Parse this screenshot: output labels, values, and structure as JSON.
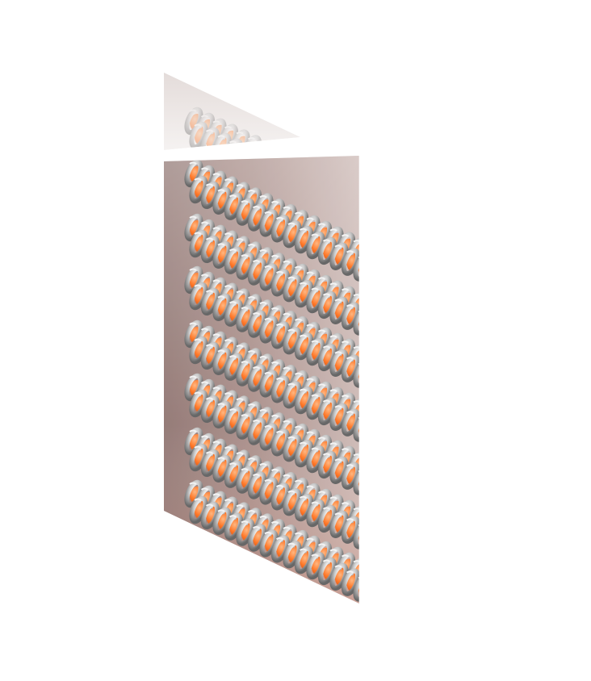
{
  "scene": {
    "subject": "helical-coil-array-prism",
    "colors": {
      "background": "#ffffff",
      "panel_dark": "#9a7f7a",
      "panel_mid": "#b49994",
      "panel_light": "#e8e2e1",
      "top_shelf": "#eeeae9",
      "coil_orange": "#ff6f1a",
      "coil_orange_dark": "#e2510a",
      "coil_metal_light": "#f3f3f3",
      "coil_metal": "#b8b8b8",
      "coil_metal_dark": "#6d6d6d"
    }
  }
}
